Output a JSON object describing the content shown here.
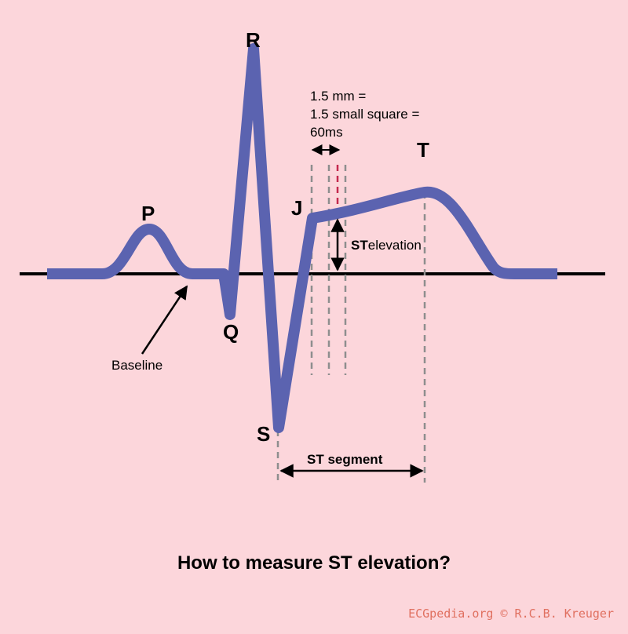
{
  "colors": {
    "background": "#fcd6db",
    "wave": "#5b63b0",
    "baseline": "#000000",
    "guide": "#8e8e8e",
    "accent_guide": "#c4294e",
    "credit": "#e07060"
  },
  "waves": {
    "p": "P",
    "q": "Q",
    "r": "R",
    "s": "S",
    "t": "T",
    "j": "J"
  },
  "annotations": {
    "measure_line1": "1.5 mm =",
    "measure_line2": "1.5 small square =",
    "measure_line3": "60ms",
    "st_prefix": "ST",
    "st_suffix": "elevation",
    "baseline": "Baseline",
    "st_segment": "ST segment"
  },
  "title": "How to measure ST elevation?",
  "credit": "ECGpedia.org © R.C.B. Kreuger"
}
